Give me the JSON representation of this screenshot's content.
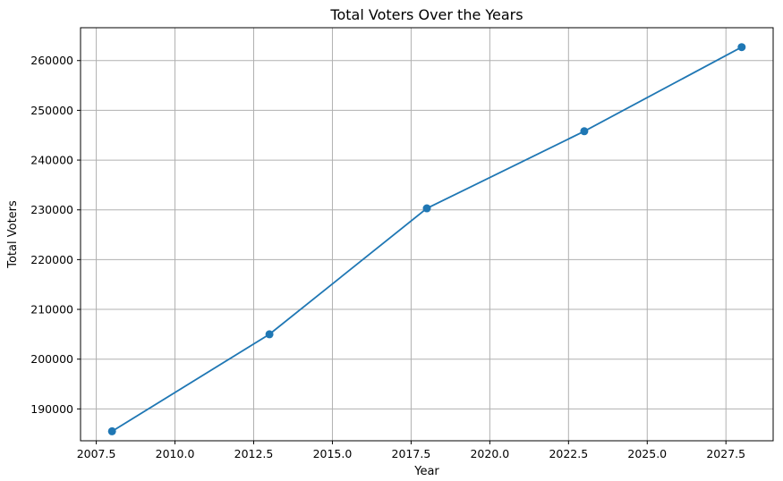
{
  "chart_data": {
    "type": "line",
    "title": "Total Voters Over the Years",
    "xlabel": "Year",
    "ylabel": "Total Voters",
    "xlim": [
      2007.0,
      2029.0
    ],
    "ylim": [
      183600,
      266600
    ],
    "x_ticks": [
      "2007.5",
      "2010.0",
      "2012.5",
      "2015.0",
      "2017.5",
      "2020.0",
      "2022.5",
      "2025.0",
      "2027.5"
    ],
    "y_ticks": [
      "190000",
      "200000",
      "210000",
      "220000",
      "230000",
      "240000",
      "250000",
      "260000"
    ],
    "grid": true,
    "marker": "circle",
    "series": [
      {
        "color": "#1f77b4",
        "points": [
          {
            "x": 2008,
            "y": 185500
          },
          {
            "x": 2013,
            "y": 205000
          },
          {
            "x": 2018,
            "y": 230300
          },
          {
            "x": 2023,
            "y": 245800
          },
          {
            "x": 2028,
            "y": 262700
          }
        ]
      }
    ]
  }
}
